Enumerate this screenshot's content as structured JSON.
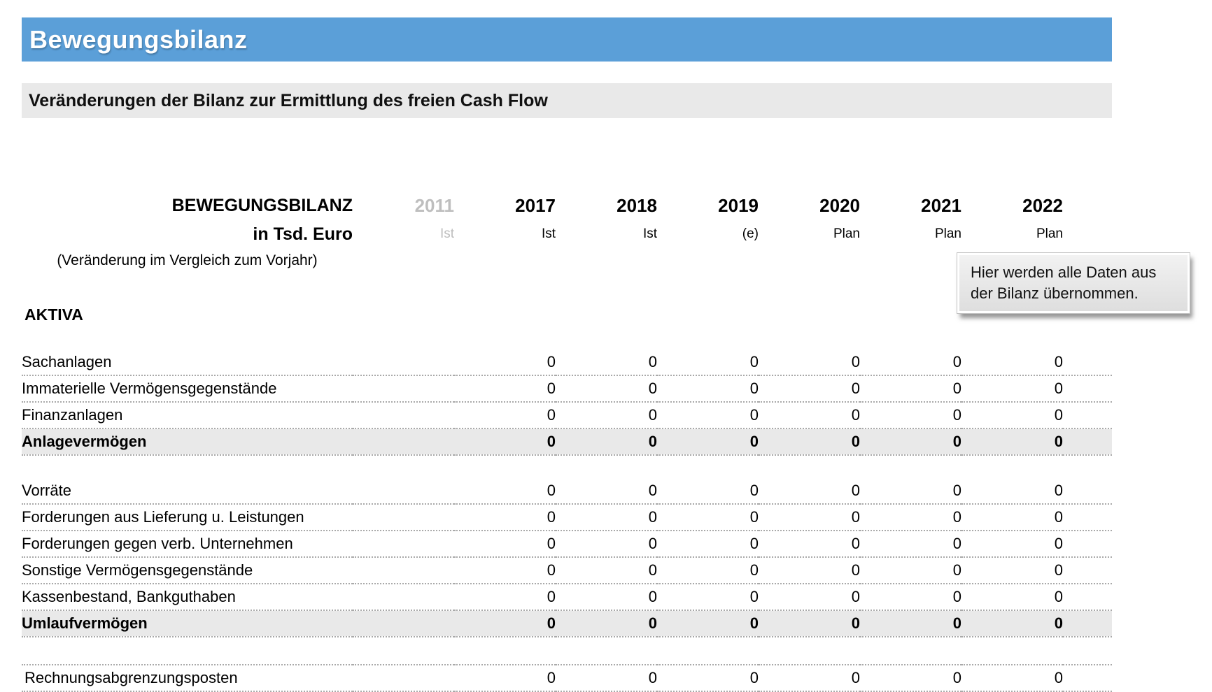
{
  "page": {
    "title": "Bewegungsbilanz",
    "subtitle": "Veränderungen der Bilanz zur Ermittlung des freien Cash Flow"
  },
  "tooltip": {
    "text": "Hier werden alle Daten aus der Bilanz übernommen."
  },
  "table": {
    "name": "BEWEGUNGSBILANZ",
    "unit": "in Tsd. Euro",
    "note": "(Veränderung im Vergleich zum Vorjahr)",
    "section": "AKTIVA",
    "columns": [
      {
        "year": "2011",
        "status": "Ist",
        "muted": true
      },
      {
        "year": "2017",
        "status": "Ist",
        "muted": false
      },
      {
        "year": "2018",
        "status": "Ist",
        "muted": false
      },
      {
        "year": "2019",
        "status": "(e)",
        "muted": false
      },
      {
        "year": "2020",
        "status": "Plan",
        "muted": false
      },
      {
        "year": "2021",
        "status": "Plan",
        "muted": false
      },
      {
        "year": "2022",
        "status": "Plan",
        "muted": false
      }
    ],
    "rows": [
      {
        "type": "item",
        "label": "Sachanlagen",
        "values": [
          "",
          "0",
          "0",
          "0",
          "0",
          "0",
          "0"
        ]
      },
      {
        "type": "item",
        "label": "Immaterielle Vermögensgegenstände",
        "values": [
          "",
          "0",
          "0",
          "0",
          "0",
          "0",
          "0"
        ]
      },
      {
        "type": "item",
        "label": "Finanzanlagen",
        "values": [
          "",
          "0",
          "0",
          "0",
          "0",
          "0",
          "0"
        ]
      },
      {
        "type": "subtotal",
        "label": "Anlagevermögen",
        "values": [
          "",
          "0",
          "0",
          "0",
          "0",
          "0",
          "0"
        ]
      },
      {
        "type": "spacer",
        "line": false
      },
      {
        "type": "item",
        "label": "Vorräte",
        "values": [
          "",
          "0",
          "0",
          "0",
          "0",
          "0",
          "0"
        ]
      },
      {
        "type": "item",
        "label": "Forderungen aus Lieferung u. Leistungen",
        "values": [
          "",
          "0",
          "0",
          "0",
          "0",
          "0",
          "0"
        ]
      },
      {
        "type": "item",
        "label": "Forderungen gegen verb. Unternehmen",
        "values": [
          "",
          "0",
          "0",
          "0",
          "0",
          "0",
          "0"
        ]
      },
      {
        "type": "item",
        "label": "Sonstige Vermögensgegenstände",
        "values": [
          "",
          "0",
          "0",
          "0",
          "0",
          "0",
          "0"
        ]
      },
      {
        "type": "item",
        "label": "Kassenbestand, Bankguthaben",
        "values": [
          "",
          "0",
          "0",
          "0",
          "0",
          "0",
          "0"
        ]
      },
      {
        "type": "subtotal",
        "label": "Umlaufvermögen",
        "values": [
          "",
          "0",
          "0",
          "0",
          "0",
          "0",
          "0"
        ]
      },
      {
        "type": "spacer",
        "line": true
      },
      {
        "type": "item",
        "flush": true,
        "label": "Rechnungsabgrenzungsposten",
        "values": [
          "",
          "0",
          "0",
          "0",
          "0",
          "0",
          "0"
        ]
      }
    ]
  },
  "colors": {
    "title_bar_blue": "#5b9fd8",
    "band_gray": "#e9e9e9",
    "muted_text": "#bebebe",
    "dotted_line": "#a9a9a9"
  }
}
